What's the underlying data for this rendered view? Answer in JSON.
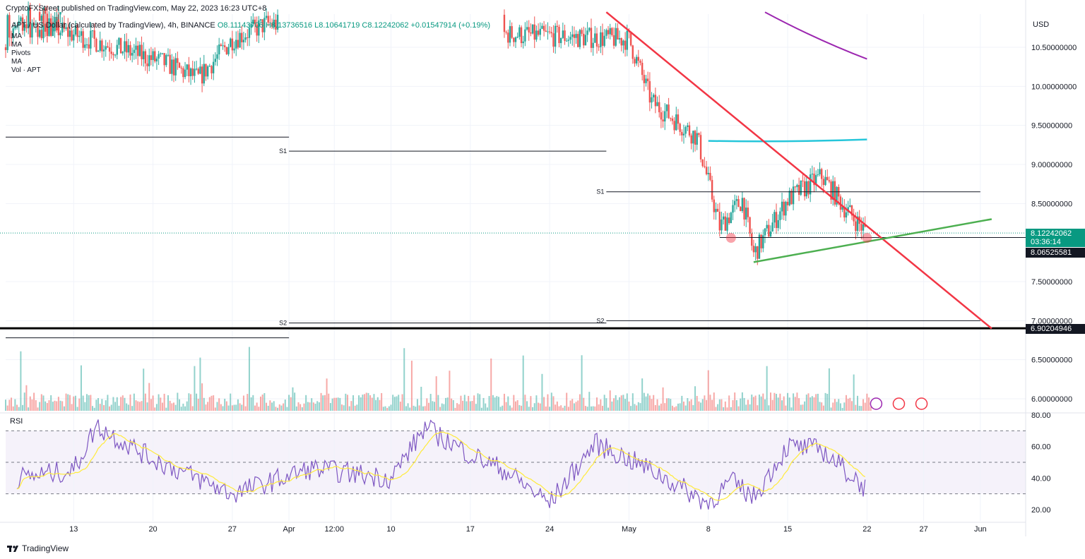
{
  "header": {
    "published": "CryptoFXStreet published on TradingView.com, May 22, 2023 16:23 UTC+8",
    "symbol": "APT / US Dollar (calculated by TradingView), 4h, BINANCE",
    "open": "O8.11143706",
    "high": "H8.13736516",
    "low": "L8.10641719",
    "close": "C8.12242062",
    "change": "+0.01547914 (+0.19%)",
    "indicators": [
      "MA",
      "MA",
      "Pivots",
      "MA",
      "Vol · APT"
    ]
  },
  "price_axis": {
    "currency": "USD",
    "ticks": [
      "10.50000000",
      "10.00000000",
      "9.50000000",
      "9.00000000",
      "8.50000000",
      "7.50000000",
      "7.00000000",
      "6.50000000",
      "6.00000000"
    ],
    "current_price": "8.12242062",
    "countdown": "03:36:14",
    "support_label": "8.06525581",
    "low_label": "6.90204946"
  },
  "rsi_pane": {
    "title": "RSI",
    "ticks": [
      "80.00",
      "60.00",
      "40.00",
      "20.00"
    ]
  },
  "time_axis": [
    "13",
    "20",
    "27",
    "Apr",
    "12:00",
    "10",
    "17",
    "24",
    "May",
    "8",
    "15",
    "22",
    "27",
    "Jun"
  ],
  "pivot_labels": [
    "S1",
    "S1",
    "S2",
    "S2"
  ],
  "colors": {
    "up": "#26a69a",
    "down": "#ef5350",
    "resistance_trend": "#f23645",
    "support_trend": "#4caf50",
    "ma_cyan": "#26c6da",
    "ma_purple": "#9c27b0",
    "rsi_line": "#7e57c2",
    "rsi_ma": "#ffeb3b",
    "current_price_bg": "#089981"
  },
  "brand": "TradingView",
  "chart_data": [
    {
      "type": "candlestick",
      "title": "APT / US Dollar (calculated by TradingView), 4h, BINANCE",
      "ylabel": "USD",
      "ylim": [
        5.9,
        10.9
      ],
      "last_price": 8.12242062,
      "open": 8.11143706,
      "high": 8.13736516,
      "low": 8.10641719,
      "close": 8.12242062,
      "support_level": 8.06525581,
      "horizontal_support": 6.90204946,
      "swing_points": [
        {
          "date": "2023-03-10",
          "close": 10.8
        },
        {
          "date": "2023-03-21",
          "close": 10.3
        },
        {
          "date": "2023-03-24",
          "close": 10.1
        },
        {
          "date": "2023-03-27",
          "close": 10.6
        },
        {
          "date": "2023-03-30",
          "close": 10.8
        },
        {
          "date": "2023-05-01",
          "close": 10.6
        },
        {
          "date": "2023-05-03",
          "close": 9.8
        },
        {
          "date": "2023-05-07",
          "close": 9.35
        },
        {
          "date": "2023-05-09",
          "close": 8.2
        },
        {
          "date": "2023-05-11",
          "close": 8.55
        },
        {
          "date": "2023-05-12",
          "close": 7.85
        },
        {
          "date": "2023-05-15",
          "close": 8.55
        },
        {
          "date": "2023-05-18",
          "close": 8.85
        },
        {
          "date": "2023-05-20",
          "close": 8.45
        },
        {
          "date": "2023-05-22",
          "close": 8.12
        }
      ],
      "pivots": [
        {
          "label": "S1",
          "value": 9.17
        },
        {
          "label": "S1",
          "value": 8.65
        },
        {
          "label": "S2",
          "value": 6.97
        },
        {
          "label": "S2",
          "value": 7.0
        }
      ],
      "trendlines": [
        {
          "name": "resistance",
          "from": {
            "date": "2023-04-29",
            "value": 10.95
          },
          "to": {
            "date": "2023-06-02",
            "value": 6.9
          }
        },
        {
          "name": "support",
          "from": {
            "date": "2023-05-12",
            "value": 7.75
          },
          "to": {
            "date": "2023-06-02",
            "value": 8.3
          }
        }
      ],
      "moving_averages": [
        {
          "color": "ma_cyan",
          "from": {
            "date": "2023-05-08",
            "value": 9.32
          },
          "to": {
            "date": "2023-05-22",
            "value": 9.32
          }
        },
        {
          "color": "ma_purple",
          "from": {
            "date": "2023-05-13",
            "value": 10.95
          },
          "to": {
            "date": "2023-05-22",
            "value": 10.35
          }
        }
      ],
      "grid": true
    },
    {
      "type": "line",
      "title": "RSI",
      "ylim": [
        15,
        85
      ],
      "bands": [
        30,
        50,
        70
      ],
      "series": [
        {
          "x": [
            "2023-03-08",
            "2023-03-13",
            "2023-03-15",
            "2023-03-20",
            "2023-03-27",
            "2023-04-03",
            "2023-04-10",
            "2023-04-13",
            "2023-04-17",
            "2023-04-20",
            "2023-04-24",
            "2023-04-28",
            "2023-05-03",
            "2023-05-08",
            "2023-05-10",
            "2023-05-12",
            "2023-05-15",
            "2023-05-18",
            "2023-05-22"
          ],
          "values": [
            40,
            45,
            73,
            52,
            30,
            46,
            40,
            72,
            55,
            45,
            24,
            62,
            45,
            24,
            38,
            28,
            60,
            58,
            33
          ]
        }
      ]
    }
  ]
}
